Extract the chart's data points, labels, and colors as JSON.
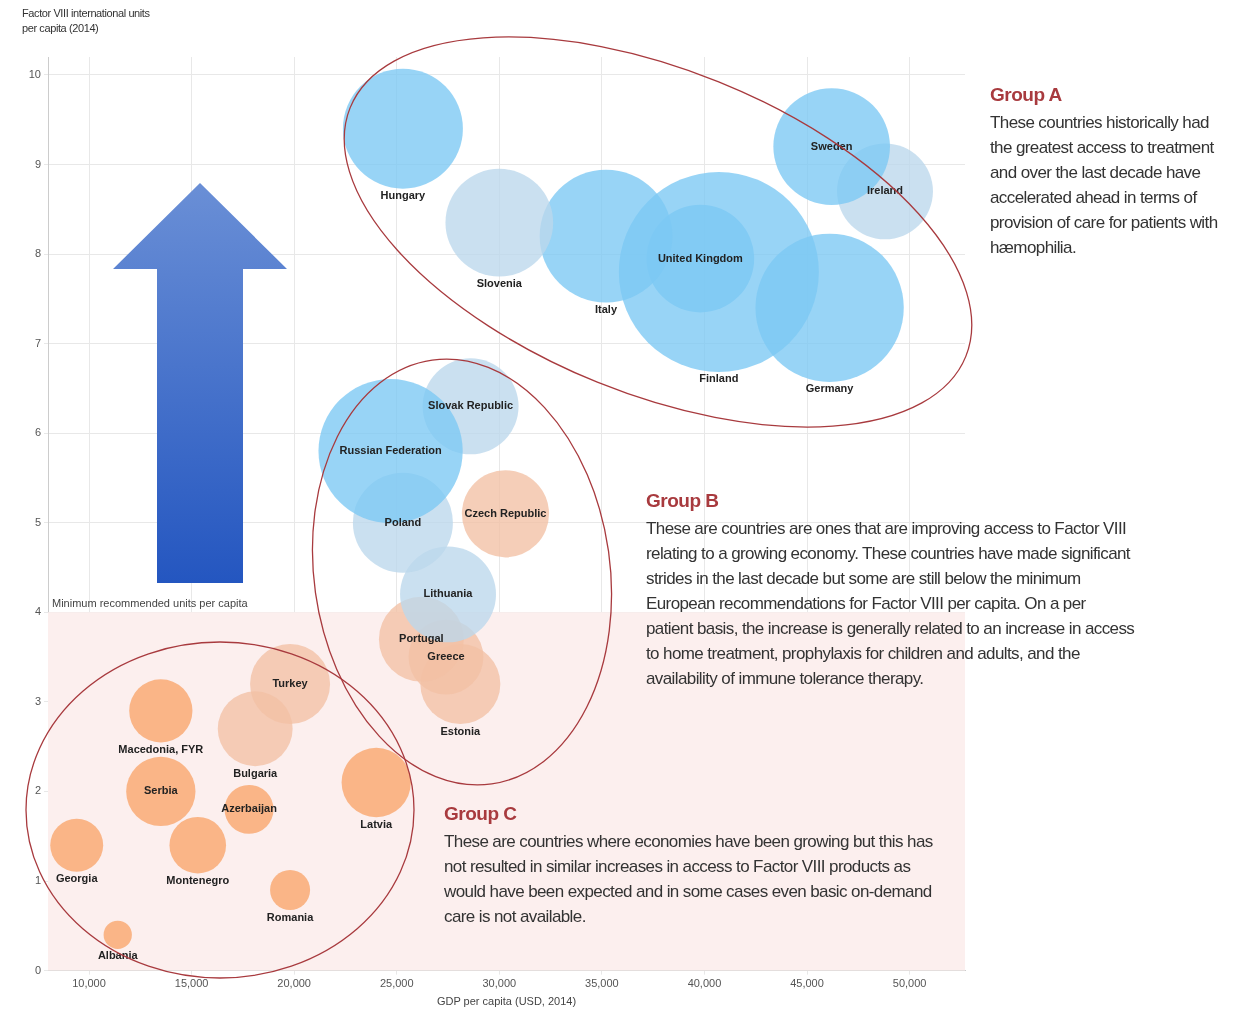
{
  "chart_data": {
    "type": "bubble",
    "ylabel": "Factor VIII international units per capita (2014)",
    "xlabel": "GDP per capita (USD, 2014)",
    "xlim": [
      8000,
      52700
    ],
    "ylim": [
      0,
      10.2
    ],
    "xticks": [
      {
        "value": 10000,
        "label": "10,000"
      },
      {
        "value": 15000,
        "label": "15,000"
      },
      {
        "value": 20000,
        "label": "20,000"
      },
      {
        "value": 25000,
        "label": "25,000"
      },
      {
        "value": 30000,
        "label": "30,000"
      },
      {
        "value": 35000,
        "label": "35,000"
      },
      {
        "value": 40000,
        "label": "40,000"
      },
      {
        "value": 45000,
        "label": "45,000"
      },
      {
        "value": 50000,
        "label": "50,000"
      }
    ],
    "yticks": [
      0,
      1,
      2,
      3,
      4,
      5,
      6,
      7,
      8,
      9,
      10
    ],
    "grid": true,
    "legend": false,
    "bands": [
      {
        "axis": "y",
        "from": 0,
        "to": 4,
        "label": "Minimum recommended units per capita",
        "color": "#fcefee"
      }
    ],
    "series": [
      {
        "name": "Hungary",
        "color": "#7cc8f4",
        "x": [
          25300
        ],
        "values": [
          9.4
        ],
        "sizes": [
          0.36
        ]
      },
      {
        "name": "Slovenia",
        "color": "#bcd8ec",
        "x": [
          30000
        ],
        "values": [
          8.35
        ],
        "sizes": [
          0.29
        ]
      },
      {
        "name": "Italy",
        "color": "#7cc8f4",
        "x": [
          35200
        ],
        "values": [
          8.2
        ],
        "sizes": [
          0.44
        ]
      },
      {
        "name": "Finland",
        "color": "#7cc8f4",
        "x": [
          40700
        ],
        "values": [
          7.8
        ],
        "sizes": [
          1
        ]
      },
      {
        "name": "United Kingdom",
        "color": "#7cc8f4",
        "x": [
          39800
        ],
        "values": [
          7.95
        ],
        "sizes": [
          0.29
        ]
      },
      {
        "name": "Sweden",
        "color": "#7cc8f4",
        "x": [
          46200
        ],
        "values": [
          9.2
        ],
        "sizes": [
          0.34
        ]
      },
      {
        "name": "Ireland",
        "color": "#bcd8ec",
        "x": [
          48800
        ],
        "values": [
          8.7
        ],
        "sizes": [
          0.23
        ]
      },
      {
        "name": "Germany",
        "color": "#7cc8f4",
        "x": [
          46100
        ],
        "values": [
          7.4
        ],
        "sizes": [
          0.55
        ]
      },
      {
        "name": "Russian Federation",
        "color": "#7cc8f4",
        "x": [
          24700
        ],
        "values": [
          5.8
        ],
        "sizes": [
          0.52
        ]
      },
      {
        "name": "Slovak Republic",
        "color": "#bcd8ec",
        "x": [
          28600
        ],
        "values": [
          6.3
        ],
        "sizes": [
          0.23
        ]
      },
      {
        "name": "Poland",
        "color": "#bcd8ec",
        "x": [
          25300
        ],
        "values": [
          5.0
        ],
        "sizes": [
          0.25
        ]
      },
      {
        "name": "Czech Republic",
        "color": "#f2c0a4",
        "x": [
          30300
        ],
        "values": [
          5.1
        ],
        "sizes": [
          0.19
        ]
      },
      {
        "name": "Lithuania",
        "color": "#bcd8ec",
        "x": [
          27500
        ],
        "values": [
          4.2
        ],
        "sizes": [
          0.23
        ]
      },
      {
        "name": "Portugal",
        "color": "#f2c0a4",
        "x": [
          26200
        ],
        "values": [
          3.7
        ],
        "sizes": [
          0.18
        ]
      },
      {
        "name": "Greece",
        "color": "#f2c0a4",
        "x": [
          27400
        ],
        "values": [
          3.5
        ],
        "sizes": [
          0.14
        ]
      },
      {
        "name": "Estonia",
        "color": "#f2c0a4",
        "x": [
          28100
        ],
        "values": [
          3.2
        ],
        "sizes": [
          0.16
        ]
      },
      {
        "name": "Macedonia, FYR",
        "color": "#f9a56a",
        "x": [
          13500
        ],
        "values": [
          2.9
        ],
        "sizes": [
          0.1
        ]
      },
      {
        "name": "Turkey",
        "color": "#f2c0a4",
        "x": [
          19800
        ],
        "values": [
          3.2
        ],
        "sizes": [
          0.16
        ]
      },
      {
        "name": "Bulgaria",
        "color": "#f2c0a4",
        "x": [
          18100
        ],
        "values": [
          2.7
        ],
        "sizes": [
          0.14
        ]
      },
      {
        "name": "Serbia",
        "color": "#f9a56a",
        "x": [
          13500
        ],
        "values": [
          2.0
        ],
        "sizes": [
          0.12
        ]
      },
      {
        "name": "Montenegro",
        "color": "#f9a56a",
        "x": [
          15300
        ],
        "values": [
          1.4
        ],
        "sizes": [
          0.08
        ]
      },
      {
        "name": "Azerbaijan",
        "color": "#f9a56a",
        "x": [
          17800
        ],
        "values": [
          1.8
        ],
        "sizes": [
          0.06
        ]
      },
      {
        "name": "Latvia",
        "color": "#f9a56a",
        "x": [
          24000
        ],
        "values": [
          2.1
        ],
        "sizes": [
          0.12
        ]
      },
      {
        "name": "Georgia",
        "color": "#f9a56a",
        "x": [
          9400
        ],
        "values": [
          1.4
        ],
        "sizes": [
          0.07
        ]
      },
      {
        "name": "Romania",
        "color": "#f9a56a",
        "x": [
          19800
        ],
        "values": [
          0.9
        ],
        "sizes": [
          0.04
        ]
      },
      {
        "name": "Albania",
        "color": "#f9a56a",
        "x": [
          11400
        ],
        "values": [
          0.4
        ],
        "sizes": [
          0.02
        ]
      }
    ],
    "annotations": [
      "Group A",
      "These countries historically had the greatest access to treatment and over the last decade have accelerated ahead in terms of provision of care for patients with hæmophilia.",
      "Group B",
      "These are countries are ones that are improving access to Factor VIII relating to a growing economy. These countries have made significant strides in the last decade but some are still below the minimum European recommendations for Factor VIII per capita. On a per patient basis, the increase is generally related to an increase in access to home treatment, prophylaxis for children and adults, and the availability of immune tolerance therapy.",
      "Group C",
      "These are countries where economies have been growing but this has not resulted in similar increases in access to Factor VIII products as would have been expected and in some cases even basic on-demand care is not available."
    ]
  }
}
